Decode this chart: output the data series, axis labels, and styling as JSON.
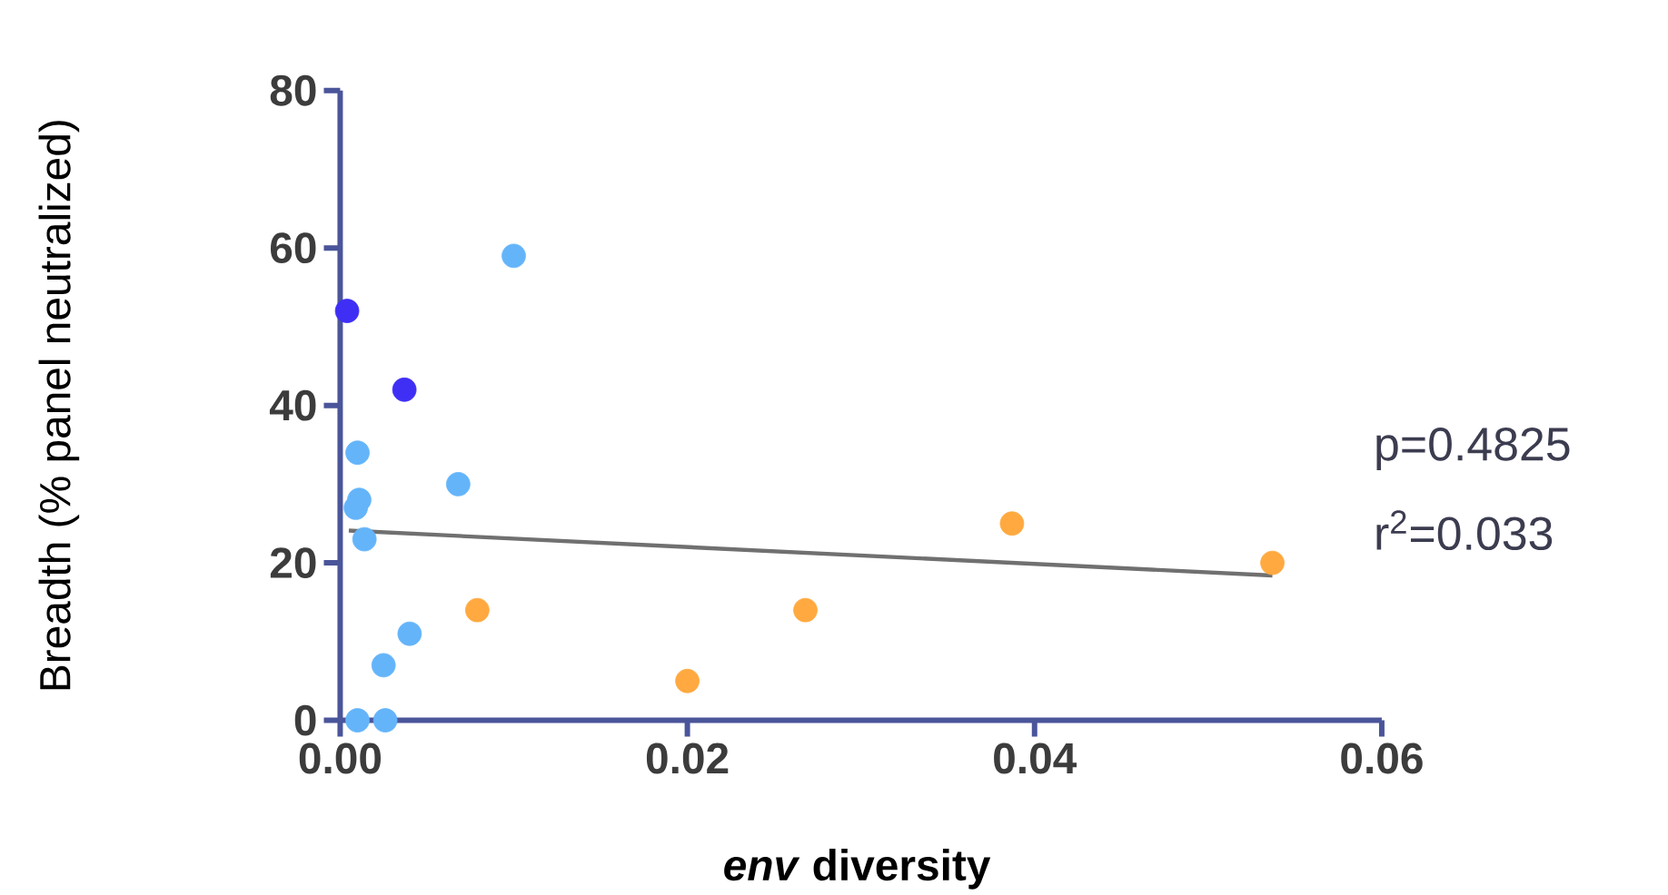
{
  "chart_data": {
    "type": "scatter",
    "xlabel": "*env* diversity",
    "ylabel": "Breadth (% panel neutralized)",
    "xlim": [
      0,
      0.06
    ],
    "ylim": [
      0,
      80
    ],
    "xticks": [
      {
        "value": 0,
        "label": "0.00"
      },
      {
        "value": 0.02,
        "label": "0.02"
      },
      {
        "value": 0.04,
        "label": "0.04"
      },
      {
        "value": 0.06,
        "label": "0.06"
      }
    ],
    "yticks": [
      0,
      20,
      40,
      60,
      80
    ],
    "grid": false,
    "annotations": [
      "p=0.4825",
      "r$^{2}$=0.033"
    ],
    "series": [
      {
        "marker": "circle",
        "color": "#64b4fa",
        "x": [
          0.01,
          0.001,
          0.0011,
          0.0009,
          0.0014,
          0.0068,
          0.004,
          0.0025,
          0.001,
          0.0026
        ],
        "values": [
          59,
          34,
          28,
          27,
          23,
          30,
          11,
          7,
          0,
          0
        ]
      },
      {
        "marker": "circle",
        "color": "#3f2ff5",
        "x": [
          0.0004,
          0.0037
        ],
        "values": [
          52,
          42
        ]
      },
      {
        "marker": "circle",
        "color": "#ffa940",
        "x": [
          0.0079,
          0.02,
          0.0268,
          0.0387,
          0.0537
        ],
        "values": [
          14,
          5,
          14,
          25,
          20
        ]
      },
      {
        "type": "line",
        "marker": "none",
        "color": "#707070",
        "x": [
          0.0005,
          0.0537
        ],
        "values": [
          24.1,
          18.4
        ]
      }
    ]
  }
}
